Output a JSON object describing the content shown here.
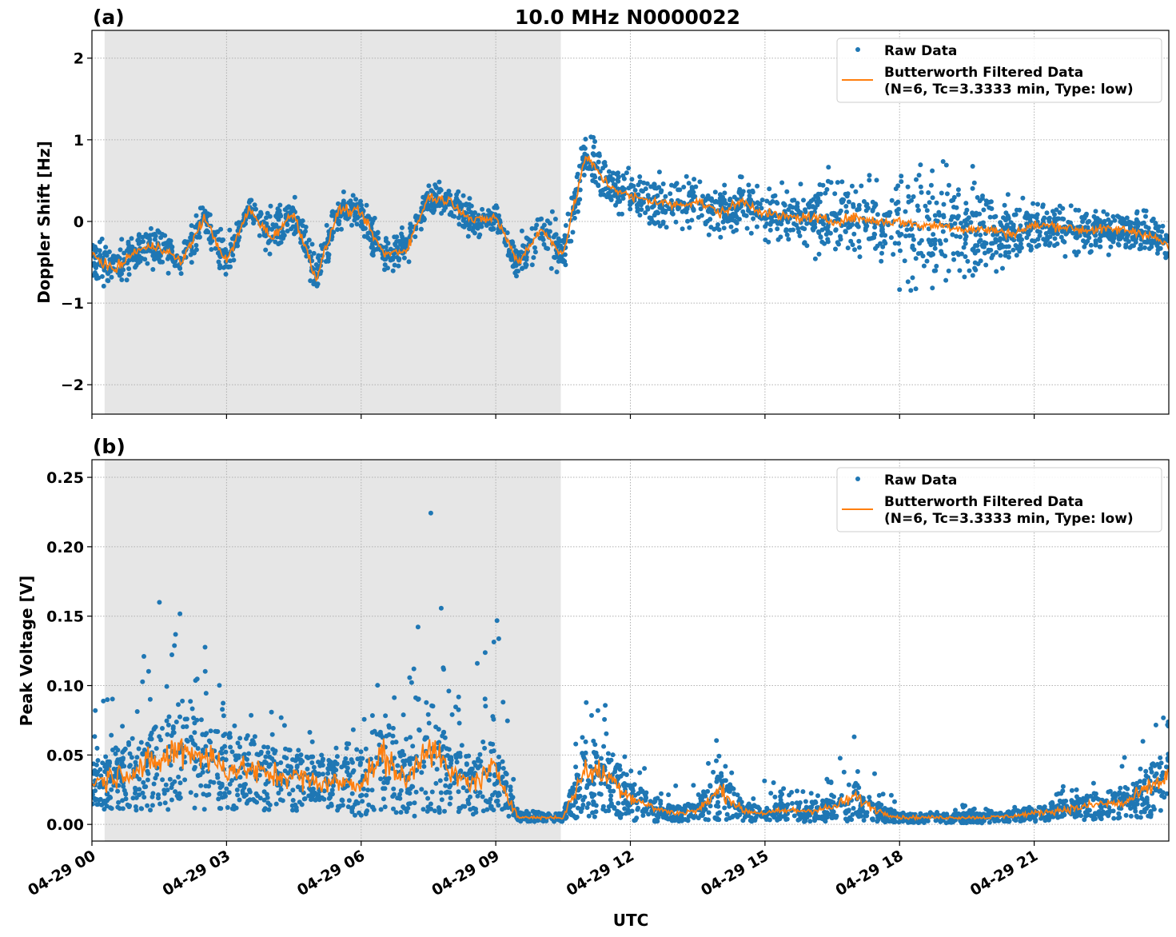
{
  "chart_data": [
    {
      "type": "scatter+line",
      "panel_label": "(a)",
      "title": "10.0 MHz N0000022",
      "ylabel": "Doppler Shift [Hz]",
      "xlabel": "",
      "xlim": [
        "04-29 00:00",
        "04-30 00:00"
      ],
      "ylim": [
        -2.36,
        2.34
      ],
      "yticks": [
        2,
        1,
        0,
        -1,
        -2
      ],
      "ytick_labels": [
        "2",
        "1",
        "0",
        "−1",
        "−2"
      ],
      "grid": true,
      "legend_placement": "top-right",
      "shaded_span": [
        "04-29 00:17",
        "04-29 10:27"
      ],
      "shade_color": "#e6e6e6",
      "x": [
        "00:00",
        "00:30",
        "01:00",
        "01:30",
        "02:00",
        "02:30",
        "03:00",
        "03:30",
        "04:00",
        "04:30",
        "05:00",
        "05:30",
        "06:00",
        "06:30",
        "07:00",
        "07:30",
        "08:00",
        "08:30",
        "09:00",
        "09:30",
        "10:00",
        "10:30",
        "11:00",
        "11:30",
        "12:00",
        "12:30",
        "13:00",
        "13:30",
        "14:00",
        "14:30",
        "15:00",
        "15:30",
        "16:00",
        "16:30",
        "17:00",
        "17:30",
        "18:00",
        "18:30",
        "19:00",
        "19:30",
        "20:00",
        "20:30",
        "21:00",
        "21:30",
        "22:00",
        "22:30",
        "23:00",
        "23:30",
        "24:00"
      ],
      "series": [
        {
          "name": "Butterworth Filtered Data\n(N=6, Tc=3.3333 min, Type: low)",
          "kind": "line",
          "color": "#ff7f0e",
          "values": [
            -0.4,
            -0.6,
            -0.35,
            -0.3,
            -0.5,
            0.05,
            -0.5,
            0.15,
            -0.2,
            0.1,
            -0.7,
            0.15,
            0.1,
            -0.4,
            -0.35,
            0.3,
            0.25,
            0.0,
            0.05,
            -0.5,
            -0.1,
            -0.4,
            0.8,
            0.45,
            0.3,
            0.25,
            0.2,
            0.25,
            0.1,
            0.25,
            0.1,
            0.05,
            0.05,
            0.0,
            0.05,
            0.0,
            0.0,
            -0.05,
            -0.05,
            -0.1,
            -0.1,
            -0.15,
            -0.05,
            -0.05,
            -0.1,
            -0.1,
            -0.1,
            -0.15,
            -0.3
          ]
        },
        {
          "name": "Raw Data",
          "kind": "scatter",
          "color": "#1f77b4",
          "raw_spread": [
            0.4,
            0.4,
            0.4,
            0.4,
            0.4,
            0.3,
            0.5,
            0.2,
            0.5,
            0.3,
            0.5,
            0.3,
            0.3,
            0.4,
            0.3,
            0.3,
            0.3,
            0.3,
            0.3,
            0.4,
            0.5,
            0.5,
            0.5,
            0.4,
            0.4,
            0.5,
            0.5,
            0.5,
            0.5,
            0.5,
            0.5,
            0.5,
            0.6,
            0.8,
            0.7,
            0.6,
            1.1,
            1.2,
            1.1,
            1.0,
            0.8,
            0.6,
            0.5,
            0.5,
            0.45,
            0.4,
            0.4,
            0.4,
            0.4
          ]
        }
      ]
    },
    {
      "type": "scatter+line",
      "panel_label": "(b)",
      "title": "",
      "ylabel": "Peak Voltage [V]",
      "xlabel": "UTC",
      "xlim": [
        "04-29 00:00",
        "04-30 00:00"
      ],
      "ylim": [
        -0.012,
        0.2627
      ],
      "yticks": [
        0.25,
        0.2,
        0.15,
        0.1,
        0.05,
        0.0
      ],
      "ytick_labels": [
        "0.25",
        "0.20",
        "0.15",
        "0.10",
        "0.05",
        "0.00"
      ],
      "xticks": [
        "04-29 00:00",
        "04-29 03:00",
        "04-29 06:00",
        "04-29 09:00",
        "04-29 12:00",
        "04-29 15:00",
        "04-29 18:00",
        "04-29 21:00"
      ],
      "xtick_labels": [
        "04-29 00",
        "04-29 03",
        "04-29 06",
        "04-29 09",
        "04-29 12",
        "04-29 15",
        "04-29 18",
        "04-29 21"
      ],
      "grid": true,
      "legend_placement": "top-right",
      "shaded_span": [
        "04-29 00:17",
        "04-29 10:27"
      ],
      "shade_color": "#e6e6e6",
      "x": [
        "00:00",
        "00:30",
        "01:00",
        "01:30",
        "02:00",
        "02:30",
        "03:00",
        "03:30",
        "04:00",
        "04:30",
        "05:00",
        "05:30",
        "06:00",
        "06:30",
        "07:00",
        "07:30",
        "08:00",
        "08:30",
        "09:00",
        "09:30",
        "10:00",
        "10:30",
        "11:00",
        "11:30",
        "12:00",
        "12:30",
        "13:00",
        "13:30",
        "14:00",
        "14:30",
        "15:00",
        "15:30",
        "16:00",
        "16:30",
        "17:00",
        "17:30",
        "18:00",
        "18:30",
        "19:00",
        "19:30",
        "20:00",
        "20:30",
        "21:00",
        "21:30",
        "22:00",
        "22:30",
        "23:00",
        "23:30",
        "24:00"
      ],
      "series": [
        {
          "name": "Butterworth Filtered Data\n(N=6, Tc=3.3333 min, Type: low)",
          "kind": "line",
          "color": "#ff7f0e",
          "values": [
            0.03,
            0.035,
            0.04,
            0.045,
            0.055,
            0.05,
            0.04,
            0.04,
            0.035,
            0.035,
            0.03,
            0.03,
            0.03,
            0.05,
            0.03,
            0.06,
            0.035,
            0.03,
            0.04,
            0.005,
            0.005,
            0.005,
            0.04,
            0.035,
            0.02,
            0.012,
            0.008,
            0.01,
            0.025,
            0.01,
            0.008,
            0.01,
            0.01,
            0.012,
            0.02,
            0.01,
            0.005,
            0.005,
            0.005,
            0.005,
            0.005,
            0.006,
            0.008,
            0.01,
            0.012,
            0.015,
            0.015,
            0.025,
            0.035
          ]
        },
        {
          "name": "Raw Data",
          "kind": "scatter",
          "color": "#1f77b4",
          "raw_min": [
            0.01,
            0.01,
            0.01,
            0.01,
            0.01,
            0.01,
            0.01,
            0.01,
            0.01,
            0.01,
            0.01,
            0.01,
            0.005,
            0.01,
            0.005,
            0.005,
            0.01,
            0.005,
            0.01,
            0.002,
            0.002,
            0.002,
            0.005,
            0.005,
            0.003,
            0.002,
            0.002,
            0.002,
            0.003,
            0.002,
            0.002,
            0.002,
            0.002,
            0.002,
            0.002,
            0.002,
            0.001,
            0.001,
            0.001,
            0.001,
            0.001,
            0.002,
            0.002,
            0.003,
            0.003,
            0.004,
            0.004,
            0.005,
            0.008
          ],
          "raw_max": [
            0.1,
            0.09,
            0.12,
            0.16,
            0.175,
            0.145,
            0.09,
            0.08,
            0.085,
            0.08,
            0.07,
            0.07,
            0.07,
            0.115,
            0.08,
            0.25,
            0.09,
            0.105,
            0.18,
            0.01,
            0.01,
            0.01,
            0.11,
            0.09,
            0.05,
            0.04,
            0.03,
            0.035,
            0.07,
            0.03,
            0.035,
            0.025,
            0.03,
            0.045,
            0.068,
            0.04,
            0.01,
            0.01,
            0.01,
            0.015,
            0.012,
            0.012,
            0.015,
            0.025,
            0.035,
            0.045,
            0.05,
            0.065,
            0.085
          ]
        }
      ]
    }
  ],
  "legend": {
    "raw_label": "Raw Data",
    "filtered_label_line1": "Butterworth Filtered Data",
    "filtered_label_line2": "(N=6, Tc=3.3333 min, Type: low)"
  }
}
